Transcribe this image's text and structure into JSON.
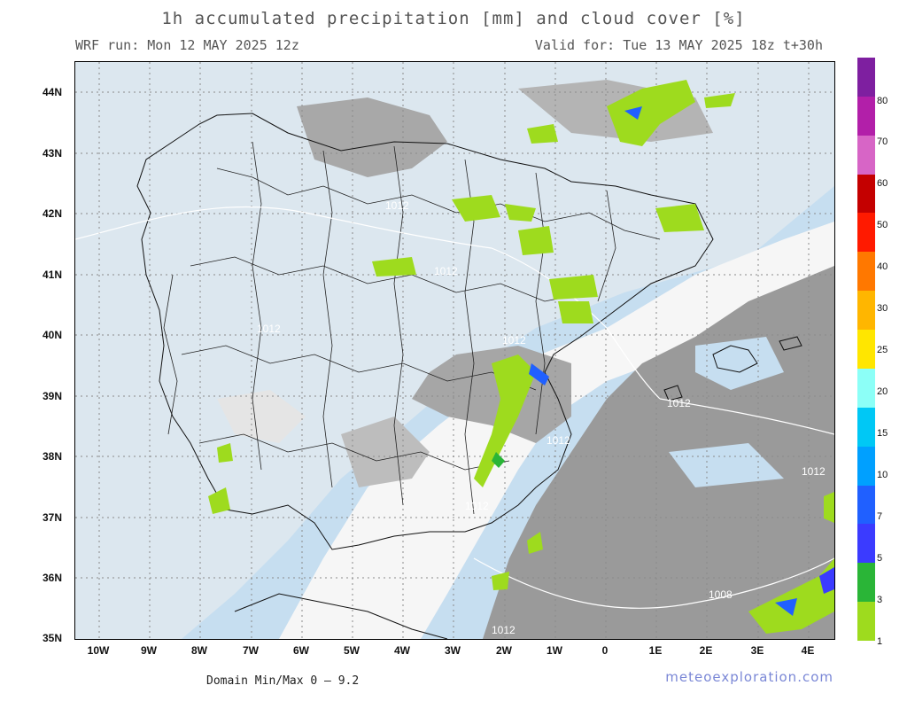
{
  "header": {
    "title": "1h accumulated precipitation [mm] and cloud cover [%]",
    "run": "WRF run: Mon 12 MAY 2025 12z",
    "valid": "Valid for: Tue 13 MAY 2025 18z  t+30h"
  },
  "axes": {
    "lat_labels": [
      "44N",
      "43N",
      "42N",
      "41N",
      "40N",
      "39N",
      "38N",
      "37N",
      "36N",
      "35N"
    ],
    "lon_labels": [
      "10W",
      "9W",
      "8W",
      "7W",
      "6W",
      "5W",
      "4W",
      "3W",
      "2W",
      "1W",
      "0",
      "1E",
      "2E",
      "3E",
      "4E"
    ]
  },
  "isobars": [
    "1012",
    "1012",
    "1012",
    "1012",
    "1012",
    "1012",
    "1012",
    "1012",
    "1012",
    "1008",
    "1012"
  ],
  "legend": {
    "labels": [
      "80",
      "70",
      "60",
      "50",
      "40",
      "30",
      "25",
      "20",
      "15",
      "10",
      "7",
      "5",
      "3",
      "1"
    ],
    "colors": [
      "#7e1fa0",
      "#b21fa9",
      "#d765c6",
      "#c40000",
      "#ff1a00",
      "#ff7800",
      "#ffb600",
      "#ffe600",
      "#8cfff7",
      "#00c8f5",
      "#00a0ff",
      "#2060ff",
      "#3b3bff",
      "#2ab537",
      "#9edb1e"
    ]
  },
  "footer": {
    "domain": "Domain Min/Max 0 — 9.2",
    "site": "meteoexploration.com"
  }
}
